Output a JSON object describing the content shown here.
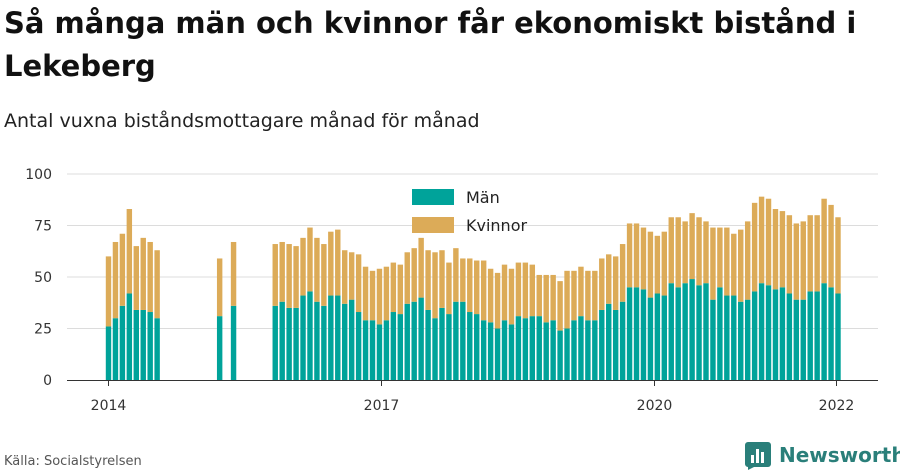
{
  "header": {
    "title": "Så många män och kvinnor får ekonomiskt bistånd i Lekeberg",
    "subtitle": "Antal vuxna biståndsmottagare månad för månad"
  },
  "footer": {
    "source": "Källa: Socialstyrelsen",
    "brand": "Newsworthy"
  },
  "colors": {
    "men": "#00a39a",
    "women": "#dcab58"
  },
  "chart_data": {
    "type": "bar",
    "stacked": true,
    "x_ticks": [
      "2014",
      "2017",
      "2020",
      "2022"
    ],
    "y_ticks": [
      0,
      25,
      50,
      75,
      100
    ],
    "ylim": [
      0,
      100
    ],
    "grid": true,
    "legend": "top-center",
    "series": [
      {
        "name": "Män",
        "values": [
          26,
          30,
          36,
          42,
          34,
          34,
          33,
          30,
          null,
          null,
          null,
          null,
          null,
          null,
          null,
          null,
          31,
          null,
          36,
          null,
          null,
          null,
          null,
          null,
          36,
          38,
          35,
          35,
          41,
          43,
          38,
          36,
          41,
          41,
          37,
          39,
          33,
          29,
          29,
          27,
          29,
          33,
          32,
          37,
          38,
          40,
          34,
          30,
          35,
          32,
          38,
          38,
          33,
          32,
          29,
          28,
          25,
          29,
          27,
          31,
          30,
          31,
          31,
          28,
          29,
          24,
          25,
          29,
          31,
          29,
          29,
          34,
          37,
          34,
          38,
          45,
          45,
          44,
          40,
          42,
          41,
          47,
          45,
          47,
          49,
          46,
          47,
          39,
          45,
          41,
          41,
          38,
          39,
          43,
          47,
          46,
          44,
          45,
          42,
          39,
          39,
          43,
          43,
          47,
          45,
          42
        ],
        "color": "#00a39a"
      },
      {
        "name": "Kvinnor",
        "values": [
          34,
          37,
          35,
          41,
          31,
          35,
          34,
          33,
          null,
          null,
          null,
          null,
          null,
          null,
          null,
          null,
          28,
          null,
          31,
          null,
          null,
          null,
          null,
          null,
          30,
          29,
          31,
          30,
          28,
          31,
          31,
          30,
          31,
          32,
          26,
          23,
          28,
          26,
          24,
          27,
          26,
          24,
          24,
          25,
          26,
          29,
          29,
          32,
          28,
          25,
          26,
          21,
          26,
          26,
          29,
          26,
          27,
          27,
          27,
          26,
          27,
          25,
          20,
          23,
          22,
          24,
          28,
          24,
          24,
          24,
          24,
          25,
          24,
          26,
          28,
          31,
          31,
          30,
          32,
          28,
          31,
          32,
          34,
          30,
          32,
          33,
          30,
          35,
          29,
          33,
          30,
          35,
          38,
          43,
          42,
          42,
          39,
          37,
          38,
          37,
          38,
          37,
          37,
          41,
          40,
          37
        ],
        "color": "#dcab58"
      }
    ]
  }
}
